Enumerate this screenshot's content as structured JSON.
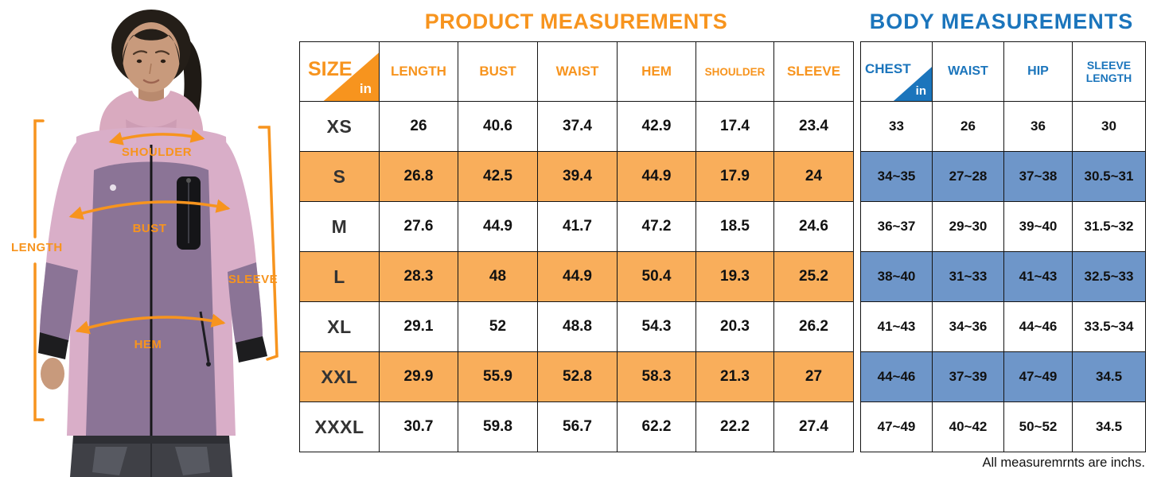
{
  "illustration": {
    "labels": {
      "shoulder": "SHOULDER",
      "bust": "BUST",
      "length": "LENGTH",
      "sleeve": "SLEEVE",
      "hem": "HEM"
    }
  },
  "product_table": {
    "title": "PRODUCT MEASUREMENTS",
    "size_header": "SIZE",
    "unit_label": "in",
    "headers": [
      "LENGTH",
      "BUST",
      "WAIST",
      "HEM",
      "SHOULDER",
      "SLEEVE"
    ],
    "rows": [
      {
        "size": "XS",
        "highlight": false,
        "values": [
          "26",
          "40.6",
          "37.4",
          "42.9",
          "17.4",
          "23.4"
        ]
      },
      {
        "size": "S",
        "highlight": true,
        "values": [
          "26.8",
          "42.5",
          "39.4",
          "44.9",
          "17.9",
          "24"
        ]
      },
      {
        "size": "M",
        "highlight": false,
        "values": [
          "27.6",
          "44.9",
          "41.7",
          "47.2",
          "18.5",
          "24.6"
        ]
      },
      {
        "size": "L",
        "highlight": true,
        "values": [
          "28.3",
          "48",
          "44.9",
          "50.4",
          "19.3",
          "25.2"
        ]
      },
      {
        "size": "XL",
        "highlight": false,
        "values": [
          "29.1",
          "52",
          "48.8",
          "54.3",
          "20.3",
          "26.2"
        ]
      },
      {
        "size": "XXL",
        "highlight": true,
        "values": [
          "29.9",
          "55.9",
          "52.8",
          "58.3",
          "21.3",
          "27"
        ]
      },
      {
        "size": "XXXL",
        "highlight": false,
        "values": [
          "30.7",
          "59.8",
          "56.7",
          "62.2",
          "22.2",
          "27.4"
        ]
      }
    ],
    "colors": {
      "accent": "#F7941E",
      "row_highlight": "#F9AE5B"
    }
  },
  "body_table": {
    "title": "BODY MEASUREMENTS",
    "chest_header": "CHEST",
    "unit_label": "in",
    "headers": [
      "WAIST",
      "HIP",
      "SLEEVE LENGTH"
    ],
    "rows": [
      {
        "highlight": false,
        "values": [
          "33",
          "26",
          "36",
          "30"
        ]
      },
      {
        "highlight": true,
        "values": [
          "34~35",
          "27~28",
          "37~38",
          "30.5~31"
        ]
      },
      {
        "highlight": false,
        "values": [
          "36~37",
          "29~30",
          "39~40",
          "31.5~32"
        ]
      },
      {
        "highlight": true,
        "values": [
          "38~40",
          "31~33",
          "41~43",
          "32.5~33"
        ]
      },
      {
        "highlight": false,
        "values": [
          "41~43",
          "34~36",
          "44~46",
          "33.5~34"
        ]
      },
      {
        "highlight": true,
        "values": [
          "44~46",
          "37~39",
          "47~49",
          "34.5"
        ]
      },
      {
        "highlight": false,
        "values": [
          "47~49",
          "40~42",
          "50~52",
          "34.5"
        ]
      }
    ],
    "colors": {
      "accent": "#1B75BC",
      "row_highlight": "#6E96C9"
    }
  },
  "footer": {
    "note": "All measuremrnts are inchs."
  }
}
